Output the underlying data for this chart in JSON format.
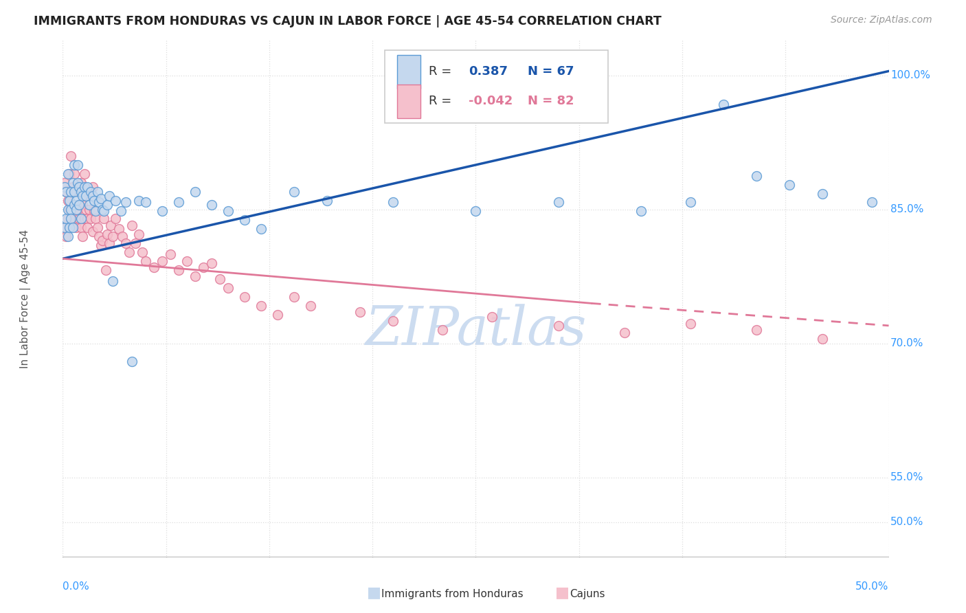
{
  "title": "IMMIGRANTS FROM HONDURAS VS CAJUN IN LABOR FORCE | AGE 45-54 CORRELATION CHART",
  "source": "Source: ZipAtlas.com",
  "ylabel": "In Labor Force | Age 45-54",
  "xlim": [
    0.0,
    0.5
  ],
  "ylim": [
    0.46,
    1.04
  ],
  "y_labeled_ticks": [
    0.5,
    0.55,
    0.7,
    0.85,
    1.0
  ],
  "R_honduras": 0.387,
  "N_honduras": 67,
  "R_cajun": -0.042,
  "N_cajun": 82,
  "blue_fill": "#c5d8ee",
  "blue_edge": "#5b9bd5",
  "pink_fill": "#f5c0cc",
  "pink_edge": "#e07898",
  "trend_blue": "#1a55aa",
  "trend_pink": "#e07898",
  "watermark_color": "#ccdcf0",
  "background": "#ffffff",
  "grid_color": "#dddddd",
  "axis_color": "#3399ff",
  "title_color": "#222222",
  "source_color": "#999999",
  "legend_r_blue": "#1a55aa",
  "legend_rn_pink": "#e07898",
  "honduras_x": [
    0.001,
    0.001,
    0.002,
    0.002,
    0.003,
    0.003,
    0.003,
    0.004,
    0.004,
    0.005,
    0.005,
    0.005,
    0.006,
    0.006,
    0.007,
    0.007,
    0.007,
    0.008,
    0.008,
    0.009,
    0.009,
    0.01,
    0.01,
    0.011,
    0.011,
    0.012,
    0.013,
    0.014,
    0.015,
    0.016,
    0.017,
    0.018,
    0.019,
    0.02,
    0.021,
    0.022,
    0.023,
    0.024,
    0.025,
    0.027,
    0.028,
    0.03,
    0.032,
    0.035,
    0.038,
    0.042,
    0.046,
    0.05,
    0.06,
    0.07,
    0.08,
    0.09,
    0.1,
    0.11,
    0.12,
    0.14,
    0.16,
    0.2,
    0.25,
    0.3,
    0.35,
    0.38,
    0.4,
    0.42,
    0.44,
    0.46,
    0.49
  ],
  "honduras_y": [
    0.83,
    0.875,
    0.84,
    0.87,
    0.85,
    0.82,
    0.89,
    0.86,
    0.83,
    0.87,
    0.85,
    0.84,
    0.88,
    0.83,
    0.87,
    0.855,
    0.9,
    0.86,
    0.85,
    0.9,
    0.88,
    0.875,
    0.855,
    0.87,
    0.84,
    0.865,
    0.875,
    0.865,
    0.875,
    0.855,
    0.87,
    0.865,
    0.86,
    0.848,
    0.87,
    0.858,
    0.862,
    0.85,
    0.848,
    0.855,
    0.865,
    0.77,
    0.86,
    0.848,
    0.858,
    0.68,
    0.86,
    0.858,
    0.848,
    0.858,
    0.87,
    0.855,
    0.848,
    0.838,
    0.828,
    0.87,
    0.86,
    0.858,
    0.848,
    0.858,
    0.848,
    0.858,
    0.968,
    0.888,
    0.878,
    0.868,
    0.858
  ],
  "cajun_x": [
    0.001,
    0.001,
    0.002,
    0.002,
    0.003,
    0.003,
    0.004,
    0.004,
    0.004,
    0.005,
    0.005,
    0.005,
    0.006,
    0.006,
    0.007,
    0.007,
    0.008,
    0.008,
    0.009,
    0.009,
    0.01,
    0.01,
    0.011,
    0.011,
    0.012,
    0.012,
    0.013,
    0.013,
    0.014,
    0.015,
    0.015,
    0.016,
    0.016,
    0.017,
    0.018,
    0.018,
    0.019,
    0.02,
    0.021,
    0.022,
    0.023,
    0.024,
    0.025,
    0.026,
    0.027,
    0.028,
    0.029,
    0.03,
    0.032,
    0.034,
    0.036,
    0.038,
    0.04,
    0.042,
    0.044,
    0.046,
    0.048,
    0.05,
    0.055,
    0.06,
    0.065,
    0.07,
    0.075,
    0.08,
    0.085,
    0.09,
    0.095,
    0.1,
    0.11,
    0.12,
    0.13,
    0.14,
    0.15,
    0.18,
    0.2,
    0.23,
    0.26,
    0.3,
    0.34,
    0.38,
    0.42,
    0.46
  ],
  "cajun_y": [
    0.83,
    0.88,
    0.87,
    0.82,
    0.86,
    0.84,
    0.85,
    0.89,
    0.83,
    0.87,
    0.84,
    0.91,
    0.85,
    0.875,
    0.89,
    0.84,
    0.83,
    0.87,
    0.85,
    0.875,
    0.855,
    0.84,
    0.83,
    0.88,
    0.82,
    0.855,
    0.84,
    0.89,
    0.85,
    0.84,
    0.83,
    0.865,
    0.85,
    0.84,
    0.825,
    0.875,
    0.848,
    0.84,
    0.83,
    0.82,
    0.81,
    0.815,
    0.84,
    0.782,
    0.822,
    0.812,
    0.832,
    0.82,
    0.84,
    0.828,
    0.82,
    0.812,
    0.802,
    0.832,
    0.812,
    0.822,
    0.802,
    0.792,
    0.785,
    0.792,
    0.8,
    0.782,
    0.792,
    0.775,
    0.785,
    0.79,
    0.772,
    0.762,
    0.752,
    0.742,
    0.732,
    0.752,
    0.742,
    0.735,
    0.725,
    0.715,
    0.73,
    0.72,
    0.712,
    0.722,
    0.715,
    0.705
  ]
}
